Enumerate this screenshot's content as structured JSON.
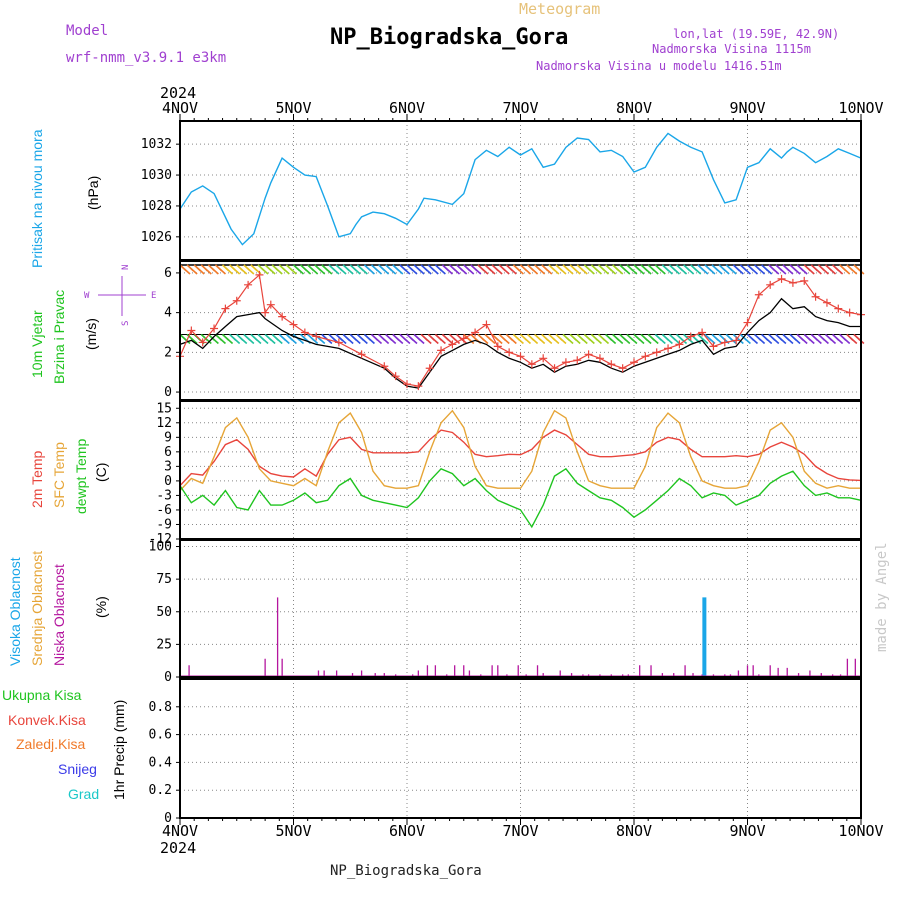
{
  "header": {
    "meteogram_label": "Meteogram",
    "station_title": "NP_Biogradska_Gora",
    "model_label": "Model",
    "model_name": "wrf-nmm_v3.9.1  e3km",
    "lonlat": "lon,lat (19.59E, 42.9N)",
    "elevation": "Nadmorska Visina 1115m",
    "model_elevation": "Nadmorska Visina u modelu 1416.51m",
    "year_top": "2024",
    "year_bottom": "2024",
    "footer_station": "NP_Biogradska_Gora",
    "watermark": "made by Angel"
  },
  "colors": {
    "pressure": "#1aa6e8",
    "wind_speed_red": "#e8453c",
    "wind_speed_black": "#000000",
    "temp2m": "#e8453c",
    "sfc_temp": "#e6a537",
    "dewpoint": "#1fc41f",
    "cloud_high": "#1aa6e8",
    "cloud_mid": "#e6a537",
    "cloud_low": "#b4159e",
    "purple": "#a040d0",
    "grid": "#888888"
  },
  "axis": {
    "date_labels": [
      "4NOV",
      "5NOV",
      "6NOV",
      "7NOV",
      "8NOV",
      "9NOV",
      "10NOV"
    ]
  },
  "panels": {
    "pressure": {
      "ylabel_1": "Pritisak na nivou mora",
      "unit": "(hPa)"
    },
    "wind": {
      "ylabel_1": "10m Vjetar",
      "ylabel_2": "Brzina i Pravac",
      "unit": "(m/s)",
      "compass_n": "N",
      "compass_s": "S",
      "compass_w": "W",
      "compass_e": "E"
    },
    "temp": {
      "ylabel_1": "2m Temp",
      "ylabel_2": "SFC Temp",
      "ylabel_3": "dewpt Temp",
      "unit": "(C)"
    },
    "cloud": {
      "ylabel_1": "Visoka Oblacnost",
      "ylabel_2": "Srednja Oblacnost",
      "ylabel_3": "Niska Oblacnost",
      "unit": "(%)"
    },
    "precip": {
      "ylabel_1": "Ukupna Kisa",
      "ylabel_2": "Konvek.Kisa",
      "ylabel_3": "Zaledj.Kisa",
      "ylabel_4": "Snijeg",
      "ylabel_5": "Grad",
      "unit": "1hr Precip (mm)"
    }
  },
  "chart_data": [
    {
      "type": "line",
      "name": "sea-level-pressure",
      "ylabel": "Pritisak na nivou mora (hPa)",
      "ylim": [
        1024.5,
        1033.5
      ],
      "yticks": [
        1026,
        1028,
        1030,
        1032
      ],
      "x_days": [
        0,
        0.1,
        0.2,
        0.3,
        0.45,
        0.55,
        0.65,
        0.75,
        0.8,
        0.9,
        1.0,
        1.1,
        1.2,
        1.3,
        1.4,
        1.5,
        1.55,
        1.6,
        1.7,
        1.8,
        1.9,
        2.0,
        2.1,
        2.15,
        2.25,
        2.4,
        2.5,
        2.6,
        2.7,
        2.8,
        2.9,
        3.0,
        3.1,
        3.2,
        3.3,
        3.4,
        3.5,
        3.6,
        3.7,
        3.8,
        3.9,
        4.0,
        4.1,
        4.2,
        4.3,
        4.4,
        4.5,
        4.6,
        4.7,
        4.8,
        4.9,
        5.0,
        5.1,
        5.2,
        5.3,
        5.35,
        5.4,
        5.5,
        5.6,
        5.7,
        5.8,
        5.9,
        6.0
      ],
      "values": [
        1027.8,
        1028.9,
        1029.3,
        1028.8,
        1026.5,
        1025.5,
        1026.2,
        1028.5,
        1029.5,
        1031.1,
        1030.5,
        1030.0,
        1029.9,
        1028.0,
        1026.0,
        1026.2,
        1026.8,
        1027.3,
        1027.6,
        1027.5,
        1027.2,
        1026.8,
        1027.8,
        1028.5,
        1028.4,
        1028.1,
        1028.8,
        1031.0,
        1031.6,
        1031.2,
        1031.8,
        1031.3,
        1031.7,
        1030.5,
        1030.7,
        1031.8,
        1032.4,
        1032.3,
        1031.5,
        1031.6,
        1031.2,
        1030.2,
        1030.5,
        1031.8,
        1032.7,
        1032.2,
        1031.8,
        1031.5,
        1029.7,
        1028.2,
        1028.4,
        1030.5,
        1030.8,
        1031.7,
        1031.1,
        1031.5,
        1031.8,
        1031.4,
        1030.8,
        1031.2,
        1031.7,
        1031.4,
        1031.1
      ]
    },
    {
      "type": "line",
      "name": "wind-speed-10m",
      "ylabel": "10m Vjetar Brzina i Pravac (m/s)",
      "ylim": [
        -0.4,
        6.6
      ],
      "yticks": [
        0,
        2,
        4,
        6
      ],
      "series": [
        {
          "values_x": [
            0,
            0.1,
            0.2,
            0.3,
            0.4,
            0.5,
            0.6,
            0.7,
            0.75,
            0.8,
            0.9,
            1.0,
            1.1,
            1.2,
            1.4,
            1.6,
            1.8,
            1.9,
            2.0,
            2.1,
            2.2,
            2.3,
            2.4,
            2.5,
            2.6,
            2.7,
            2.8,
            2.9,
            3.0,
            3.1,
            3.2,
            3.3,
            3.4,
            3.5,
            3.6,
            3.7,
            3.8,
            3.9,
            4.0,
            4.1,
            4.2,
            4.3,
            4.4,
            4.5,
            4.6,
            4.7,
            4.8,
            4.9,
            5.0,
            5.1,
            5.2,
            5.3,
            5.4,
            5.5,
            5.6,
            5.7,
            5.8,
            5.9,
            6.0
          ],
          "values": [
            1.8,
            3.1,
            2.5,
            3.2,
            4.2,
            4.6,
            5.4,
            5.9,
            4.0,
            4.4,
            3.8,
            3.4,
            3.0,
            2.8,
            2.5,
            1.9,
            1.3,
            0.8,
            0.4,
            0.3,
            1.2,
            2.1,
            2.4,
            2.7,
            3.0,
            3.4,
            2.3,
            2.0,
            1.8,
            1.4,
            1.7,
            1.2,
            1.5,
            1.6,
            1.9,
            1.7,
            1.4,
            1.2,
            1.5,
            1.8,
            2.0,
            2.2,
            2.4,
            2.8,
            3.0,
            2.3,
            2.5,
            2.6,
            3.5,
            4.9,
            5.4,
            5.7,
            5.5,
            5.6,
            4.8,
            4.5,
            4.2,
            4.0,
            3.9
          ]
        },
        {
          "values_x": [
            0,
            0.1,
            0.2,
            0.3,
            0.4,
            0.5,
            0.6,
            0.7,
            0.75,
            0.8,
            0.9,
            1.0,
            1.1,
            1.2,
            1.4,
            1.6,
            1.8,
            1.9,
            2.0,
            2.1,
            2.2,
            2.3,
            2.4,
            2.5,
            2.6,
            2.7,
            2.8,
            2.9,
            3.0,
            3.1,
            3.2,
            3.3,
            3.4,
            3.5,
            3.6,
            3.7,
            3.8,
            3.9,
            4.0,
            4.1,
            4.2,
            4.3,
            4.4,
            4.5,
            4.6,
            4.7,
            4.8,
            4.9,
            5.0,
            5.1,
            5.2,
            5.3,
            5.4,
            5.5,
            5.6,
            5.7,
            5.8,
            5.9,
            6.0
          ],
          "values": [
            2.4,
            2.6,
            2.2,
            2.8,
            3.3,
            3.8,
            3.9,
            4.0,
            3.7,
            3.5,
            3.1,
            2.8,
            2.6,
            2.4,
            2.2,
            1.7,
            1.2,
            0.7,
            0.3,
            0.2,
            1.0,
            1.8,
            2.1,
            2.4,
            2.6,
            2.4,
            2.0,
            1.7,
            1.5,
            1.2,
            1.4,
            1.0,
            1.3,
            1.4,
            1.6,
            1.5,
            1.2,
            1.0,
            1.3,
            1.5,
            1.7,
            1.9,
            2.1,
            2.4,
            2.6,
            1.9,
            2.2,
            2.3,
            3.0,
            3.6,
            4.0,
            4.7,
            4.2,
            4.3,
            3.8,
            3.6,
            3.5,
            3.3,
            3.3
          ]
        }
      ]
    },
    {
      "type": "line",
      "name": "temperature",
      "ylabel": "2m Temp / SFC Temp / dewpt Temp (C)",
      "ylim": [
        -12,
        16.5
      ],
      "yticks": [
        -12,
        -9,
        -6,
        -3,
        0,
        3,
        6,
        9,
        12,
        15
      ],
      "x": [
        0,
        0.1,
        0.2,
        0.3,
        0.4,
        0.5,
        0.6,
        0.7,
        0.8,
        0.9,
        1.0,
        1.1,
        1.2,
        1.3,
        1.4,
        1.5,
        1.6,
        1.7,
        1.8,
        1.9,
        2.0,
        2.1,
        2.2,
        2.3,
        2.4,
        2.5,
        2.6,
        2.7,
        2.8,
        2.9,
        3.0,
        3.1,
        3.2,
        3.3,
        3.4,
        3.5,
        3.6,
        3.7,
        3.8,
        3.9,
        4.0,
        4.1,
        4.2,
        4.3,
        4.4,
        4.5,
        4.6,
        4.7,
        4.8,
        4.9,
        5.0,
        5.1,
        5.2,
        5.3,
        5.4,
        5.5,
        5.6,
        5.7,
        5.8,
        5.9,
        6.0
      ],
      "series": [
        {
          "name": "2m Temp",
          "values": [
            -1,
            1.5,
            1.2,
            4.0,
            7.5,
            8.5,
            6.5,
            3.0,
            1.5,
            1.0,
            0.8,
            2.5,
            1.0,
            5.5,
            8.5,
            9.0,
            6.5,
            5.8,
            5.8,
            5.8,
            5.8,
            6.0,
            8.5,
            10.5,
            10.0,
            8.0,
            5.5,
            5.0,
            5.2,
            5.5,
            5.4,
            6.5,
            9.0,
            10.5,
            9.5,
            7.5,
            5.5,
            5.0,
            5.0,
            5.2,
            5.4,
            6.0,
            8.0,
            9.0,
            8.5,
            6.5,
            5.0,
            5.0,
            5.0,
            5.2,
            5.0,
            5.5,
            7.0,
            8.0,
            7.0,
            5.5,
            3.0,
            1.5,
            0.5,
            0.2,
            0.1
          ]
        },
        {
          "name": "SFC Temp",
          "values": [
            -2,
            0.5,
            -0.5,
            5.0,
            11.0,
            13.0,
            9.0,
            2.5,
            0,
            -0.5,
            -1.0,
            0.5,
            -1.0,
            6.0,
            12.0,
            14.0,
            10.0,
            2.0,
            -1.0,
            -1.5,
            -1.5,
            -1.0,
            6.0,
            12.0,
            14.5,
            11.0,
            3.0,
            -1.0,
            -1.5,
            -1.5,
            -1.5,
            2.0,
            10.0,
            14.5,
            13.0,
            6.0,
            0,
            -1.0,
            -1.5,
            -1.5,
            -1.5,
            3.0,
            11.0,
            14.0,
            12.0,
            5.0,
            0,
            -1.0,
            -1.5,
            -1.5,
            -1.0,
            4.0,
            10.5,
            12.0,
            9.0,
            2.0,
            -0.5,
            -1.5,
            -1.0,
            -1.5,
            -1.5
          ]
        },
        {
          "name": "dewpt Temp",
          "values": [
            -1,
            -4.5,
            -3.0,
            -5.0,
            -2.0,
            -5.5,
            -6.0,
            -2.0,
            -5.0,
            -5.0,
            -4.0,
            -2.5,
            -4.5,
            -4.0,
            -1.0,
            0.5,
            -3.0,
            -4.0,
            -4.5,
            -5.0,
            -5.5,
            -3.5,
            0.0,
            2.5,
            1.5,
            -1.0,
            0.5,
            -2.0,
            -4.0,
            -5.0,
            -6.0,
            -9.5,
            -5.0,
            1.0,
            2.5,
            -0.5,
            -2.0,
            -3.5,
            -4.0,
            -5.5,
            -7.5,
            -6.0,
            -4.0,
            -2.0,
            0.5,
            -1.0,
            -3.5,
            -2.5,
            -3.0,
            -5.0,
            -4.0,
            -3.0,
            -0.5,
            1.0,
            2.0,
            -1.0,
            -3.0,
            -2.5,
            -3.5,
            -3.5,
            -4.0
          ]
        }
      ]
    },
    {
      "type": "bar",
      "name": "cloud-cover",
      "ylabel": "Visoka / Srednja / Niska Oblacnost (%)",
      "ylim": [
        0,
        105
      ],
      "yticks": [
        0,
        25,
        50,
        75,
        100
      ],
      "series": [
        {
          "name": "Niska Oblacnost",
          "x": [
            0.08,
            0.75,
            0.86,
            0.9,
            1.22,
            1.27,
            1.38,
            1.52,
            1.6,
            1.72,
            1.8,
            1.9,
            2.05,
            2.1,
            2.18,
            2.25,
            2.35,
            2.42,
            2.5,
            2.55,
            2.65,
            2.75,
            2.8,
            2.88,
            2.98,
            3.05,
            3.15,
            3.2,
            3.35,
            3.45,
            3.55,
            3.6,
            3.7,
            3.8,
            3.9,
            3.95,
            4.05,
            4.15,
            4.25,
            4.35,
            4.45,
            4.52,
            4.6,
            4.7,
            4.8,
            4.85,
            4.92,
            5.0,
            5.05,
            5.1,
            5.2,
            5.27,
            5.35,
            5.45,
            5.55,
            5.65,
            5.75,
            5.82,
            5.88,
            5.95
          ],
          "values": [
            9,
            14,
            61,
            14,
            5,
            5,
            5,
            3,
            5,
            3,
            3,
            2,
            2,
            5,
            9,
            9,
            2,
            9,
            9,
            5,
            2,
            9,
            9,
            2,
            9,
            2,
            9,
            3,
            5,
            3,
            2,
            2,
            2,
            2,
            2,
            2,
            9,
            9,
            3,
            3,
            9,
            3,
            2,
            2,
            2,
            2,
            5,
            9,
            9,
            2,
            9,
            7,
            7,
            3,
            5,
            3,
            2,
            2,
            14,
            14
          ]
        },
        {
          "name": "Visoka Oblacnost",
          "x": [
            4.62
          ],
          "values": [
            61
          ]
        }
      ]
    },
    {
      "type": "line",
      "name": "precipitation-1hr",
      "ylabel": "1hr Precip (mm)",
      "ylim": [
        0,
        1.0
      ],
      "yticks": [
        0,
        0.2,
        0.4,
        0.6,
        0.8
      ],
      "series": [
        {
          "name": "Ukupna Kisa",
          "values": [
            0,
            0,
            0,
            0,
            0,
            0,
            0
          ]
        }
      ]
    }
  ]
}
